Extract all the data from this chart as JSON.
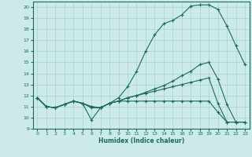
{
  "xlabel": "Humidex (Indice chaleur)",
  "bg_color": "#cceaea",
  "grid_color": "#aacfcf",
  "line_color": "#1a6b5a",
  "xlim": [
    -0.5,
    23.5
  ],
  "ylim": [
    9,
    20.5
  ],
  "yticks": [
    9,
    10,
    11,
    12,
    13,
    14,
    15,
    16,
    17,
    18,
    19,
    20
  ],
  "xticks": [
    0,
    1,
    2,
    3,
    4,
    5,
    6,
    7,
    8,
    9,
    10,
    11,
    12,
    13,
    14,
    15,
    16,
    17,
    18,
    19,
    20,
    21,
    22,
    23
  ],
  "series": [
    {
      "x": [
        0,
        1,
        2,
        3,
        4,
        5,
        6,
        7,
        8,
        9,
        10,
        11,
        12,
        13,
        14,
        15,
        16,
        17,
        18,
        19,
        20,
        21,
        22,
        23
      ],
      "y": [
        11.8,
        11.0,
        10.9,
        11.2,
        11.5,
        11.3,
        10.9,
        10.9,
        11.3,
        11.8,
        12.8,
        14.2,
        16.0,
        17.5,
        18.5,
        18.8,
        19.3,
        20.1,
        20.2,
        20.2,
        19.8,
        18.3,
        16.5,
        14.8
      ]
    },
    {
      "x": [
        0,
        1,
        2,
        3,
        4,
        5,
        6,
        7,
        8,
        9,
        10,
        11,
        12,
        13,
        14,
        15,
        16,
        17,
        18,
        19,
        20,
        21,
        22,
        23
      ],
      "y": [
        11.8,
        11.0,
        10.9,
        11.2,
        11.5,
        11.3,
        11.0,
        10.9,
        11.3,
        11.5,
        11.8,
        12.0,
        12.3,
        12.6,
        12.9,
        13.3,
        13.8,
        14.2,
        14.8,
        15.0,
        13.5,
        11.2,
        9.6,
        9.6
      ]
    },
    {
      "x": [
        0,
        1,
        2,
        3,
        4,
        5,
        6,
        7,
        8,
        9,
        10,
        11,
        12,
        13,
        14,
        15,
        16,
        17,
        18,
        19,
        20,
        21,
        22,
        23
      ],
      "y": [
        11.8,
        11.0,
        10.9,
        11.2,
        11.5,
        11.3,
        11.0,
        10.9,
        11.3,
        11.5,
        11.8,
        12.0,
        12.2,
        12.4,
        12.6,
        12.8,
        13.0,
        13.2,
        13.4,
        13.6,
        11.3,
        9.6,
        9.6,
        9.6
      ]
    },
    {
      "x": [
        0,
        1,
        2,
        3,
        4,
        5,
        6,
        7,
        8,
        9,
        10,
        11,
        12,
        13,
        14,
        15,
        16,
        17,
        18,
        19,
        20,
        21,
        22,
        23
      ],
      "y": [
        11.8,
        11.0,
        10.9,
        11.2,
        11.5,
        11.3,
        9.8,
        10.9,
        11.3,
        11.5,
        11.5,
        11.5,
        11.5,
        11.5,
        11.5,
        11.5,
        11.5,
        11.5,
        11.5,
        11.5,
        10.5,
        9.6,
        9.6,
        9.6
      ]
    }
  ]
}
